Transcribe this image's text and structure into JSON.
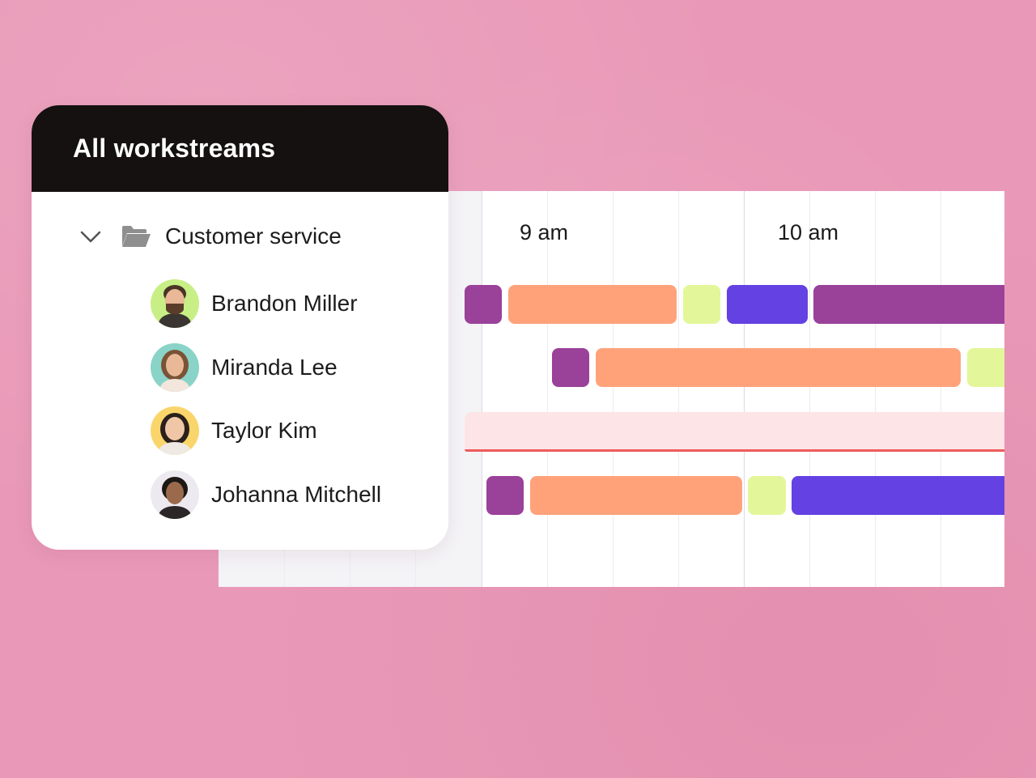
{
  "panel": {
    "title": "All workstreams",
    "group": {
      "label": "Customer service",
      "expanded_icon": "chevron-down-icon",
      "folder_icon": "folder-open-icon"
    },
    "people": [
      {
        "name": "Brandon Miller",
        "avatar_bg": "#c7ef86"
      },
      {
        "name": "Miranda Lee",
        "avatar_bg": "#8ad3c8"
      },
      {
        "name": "Taylor Kim",
        "avatar_bg": "#f9d56c"
      },
      {
        "name": "Johanna Mitchell",
        "avatar_bg": "#eceaf0"
      }
    ]
  },
  "timeline": {
    "time_labels": [
      "9 am",
      "10 am"
    ],
    "colors": {
      "purple": "#9a4199",
      "orange": "#ffa27a",
      "lime": "#e3f79a",
      "blue": "#6441e2",
      "offline_fill": "#fde4e7",
      "offline_line": "#ee5b5b"
    }
  }
}
